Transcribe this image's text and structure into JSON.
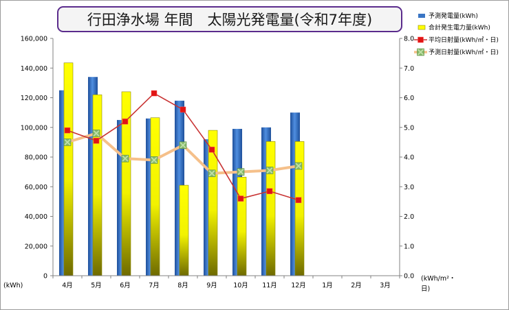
{
  "chart_data": {
    "type": "bar",
    "title": "行田浄水場 年間　太陽光発電量(令和7年度)",
    "categories": [
      "4月",
      "5月",
      "6月",
      "7月",
      "8月",
      "9月",
      "10月",
      "11月",
      "12月",
      "1月",
      "2月",
      "3月"
    ],
    "series": [
      {
        "name": "予測発電量(kWh)",
        "kind": "bar",
        "axis": "left",
        "color": "#3a75c4",
        "values": [
          125000,
          134000,
          105000,
          106000,
          118000,
          92000,
          99000,
          100000,
          110000,
          null,
          null,
          null
        ]
      },
      {
        "name": "合計発生電力量(kWh)",
        "kind": "bar",
        "axis": "left",
        "color": "#ffff00",
        "values": [
          143500,
          122000,
          124000,
          106500,
          61000,
          98000,
          66500,
          90500,
          90500,
          null,
          null,
          null
        ]
      },
      {
        "name": "平均日射量(kWh/㎡・日)",
        "kind": "line",
        "axis": "right",
        "color": "#c83232",
        "values": [
          4.9,
          4.55,
          5.2,
          6.15,
          5.6,
          4.25,
          2.6,
          2.85,
          2.55,
          null,
          null,
          null
        ]
      },
      {
        "name": "予測日射量(kWh/㎡・日)",
        "kind": "line",
        "axis": "right",
        "color": "#f5c08a",
        "values": [
          4.5,
          4.8,
          3.95,
          3.9,
          4.4,
          3.45,
          3.5,
          3.55,
          3.7,
          null,
          null,
          null
        ]
      }
    ],
    "yleft": {
      "min": 0,
      "max": 160000,
      "step": 20000,
      "label": "(kWh)"
    },
    "yright": {
      "min": 0,
      "max": 8,
      "step": 1,
      "label_line1": "(kWh/m²・",
      "label_line2": "日)"
    },
    "legend_position": "top-right",
    "grid": false
  }
}
